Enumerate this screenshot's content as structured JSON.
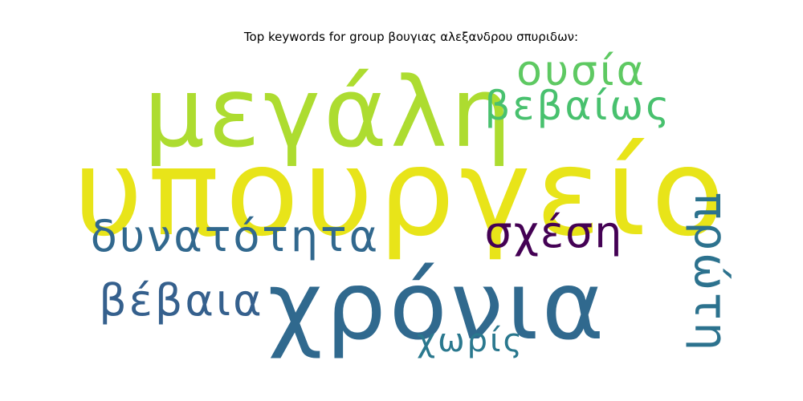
{
  "title": "Top keywords for group βουγιας αλεξανδρου σπυριδων:",
  "words": [
    {
      "text": "υπουργείο",
      "color": "#e8e419"
    },
    {
      "text": "μεγάλη",
      "color": "#addc30"
    },
    {
      "text": "χρόνια",
      "color": "#30698e"
    },
    {
      "text": "ουσία",
      "color": "#5ec962"
    },
    {
      "text": "βεβαίως",
      "color": "#48c16e"
    },
    {
      "text": "σχέση",
      "color": "#440154"
    },
    {
      "text": "δυνατότητα",
      "color": "#31688e"
    },
    {
      "text": "βέβαια",
      "color": "#35608d"
    },
    {
      "text": "πρώτη",
      "color": "#2c728e"
    },
    {
      "text": "χωρίς",
      "color": "#2a788e"
    }
  ]
}
